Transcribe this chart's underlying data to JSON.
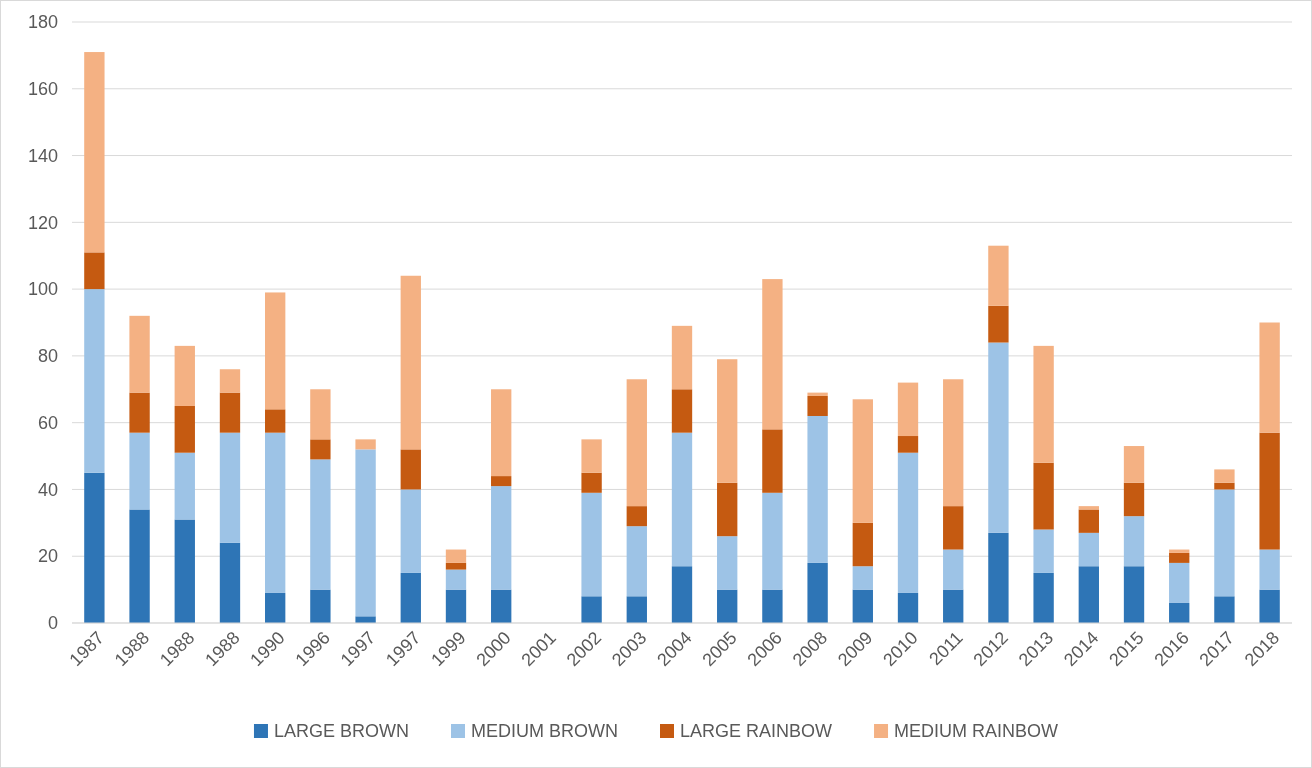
{
  "chart_data": {
    "type": "bar",
    "stacked": true,
    "categories": [
      "1987",
      "1988",
      "1988",
      "1988",
      "1990",
      "1996",
      "1997",
      "1997",
      "1999",
      "2000",
      "2001",
      "2002",
      "2003",
      "2004",
      "2005",
      "2006",
      "2008",
      "2009",
      "2010",
      "2011",
      "2012",
      "2013",
      "2014",
      "2015",
      "2016",
      "2017",
      "2018"
    ],
    "series": [
      {
        "name": "LARGE BROWN",
        "color": "#2e75b6",
        "values": [
          45,
          34,
          31,
          24,
          9,
          10,
          2,
          15,
          10,
          10,
          null,
          8,
          8,
          17,
          10,
          10,
          18,
          10,
          9,
          10,
          27,
          15,
          17,
          17,
          6,
          8,
          10
        ]
      },
      {
        "name": "MEDIUM BROWN",
        "color": "#9dc3e6",
        "values": [
          55,
          23,
          20,
          33,
          48,
          39,
          50,
          25,
          6,
          31,
          null,
          31,
          21,
          40,
          16,
          29,
          44,
          7,
          42,
          12,
          57,
          13,
          10,
          15,
          12,
          32,
          12
        ]
      },
      {
        "name": "LARGE RAINBOW",
        "color": "#c55a11",
        "values": [
          11,
          12,
          14,
          12,
          7,
          6,
          0,
          12,
          2,
          3,
          null,
          6,
          6,
          13,
          16,
          19,
          6,
          13,
          5,
          13,
          11,
          20,
          7,
          10,
          3,
          2,
          35
        ]
      },
      {
        "name": "MEDIUM RAINBOW",
        "color": "#f4b183",
        "values": [
          60,
          23,
          18,
          7,
          35,
          15,
          3,
          52,
          4,
          26,
          null,
          10,
          38,
          19,
          37,
          45,
          1,
          37,
          16,
          38,
          18,
          35,
          1,
          11,
          1,
          4,
          33
        ]
      }
    ],
    "ylim": [
      0,
      180
    ],
    "yticks": [
      0,
      20,
      40,
      60,
      80,
      100,
      120,
      140,
      160,
      180
    ],
    "grid": "y",
    "legend": "bottom"
  }
}
